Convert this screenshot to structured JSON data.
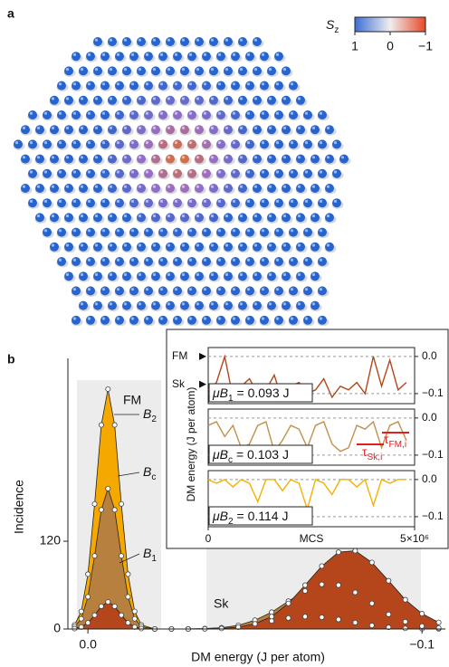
{
  "panel_a": {
    "label": "a",
    "colorbar": {
      "symbol": "S",
      "subscript": "z",
      "lim": [
        1,
        -1
      ],
      "ticks": [
        1,
        0,
        {
          "value": -1,
          "label": "−1"
        }
      ],
      "colors": [
        "#3d6fd6",
        "#eeeeee",
        "#e8492a"
      ]
    }
  },
  "panel_b": {
    "label": "b"
  },
  "chart_data": [
    {
      "type": "area",
      "xlabel": "DM energy (J per atom)",
      "ylabel": "Incidence",
      "xlim": [
        0.006,
        -0.107
      ],
      "xticks": [
        {
          "value": 0,
          "label": "0.0"
        },
        {
          "value": -0.1,
          "label": "−0.1"
        }
      ],
      "ylim": [
        0,
        370
      ],
      "yticks": [
        0,
        120
      ],
      "annotations": [
        "FM",
        "Sk"
      ],
      "x": [
        0.004,
        0.002,
        0,
        -0.002,
        -0.004,
        -0.006,
        -0.008,
        -0.01,
        -0.012,
        -0.014,
        -0.016,
        -0.02,
        -0.025,
        -0.03,
        -0.035,
        -0.04,
        -0.045,
        -0.05,
        -0.055,
        -0.06,
        -0.065,
        -0.07,
        -0.075,
        -0.08,
        -0.085,
        -0.09,
        -0.095,
        -0.1,
        -0.105
      ],
      "series": [
        {
          "label": {
            "main": "B",
            "sub": "1"
          },
          "color": "#b5451b",
          "values": [
            0.6,
            2.7,
            8.5,
            19,
            31,
            37,
            31,
            19,
            8.5,
            2.7,
            0.6,
            0,
            0,
            0,
            0.2,
            0.7,
            2.5,
            7.1,
            17,
            35,
            60,
            86,
            105,
            107,
            91,
            66,
            40,
            21,
            9
          ]
        },
        {
          "label": {
            "main": "B",
            "sub": "c"
          },
          "color": "#b8803e",
          "values": [
            3.3,
            14,
            44,
            100,
            163,
            192,
            163,
            100,
            44,
            14,
            3.3,
            0,
            0,
            0.1,
            0.5,
            1.7,
            5,
            12,
            23,
            38,
            52,
            61,
            60,
            50,
            35,
            20,
            10,
            4,
            1.4
          ]
        },
        {
          "label": {
            "main": "B",
            "sub": "2"
          },
          "color": "#f5a800",
          "values": [
            5.6,
            24,
            75,
            171,
            279,
            328,
            279,
            171,
            75,
            24,
            5.6,
            0,
            0,
            0.2,
            0.6,
            1.6,
            3.7,
            7,
            11,
            15,
            17,
            16,
            13,
            8.7,
            4.9,
            2.3,
            0.9,
            0.3,
            0.1
          ]
        }
      ]
    },
    {
      "type": "line",
      "xlim": [
        0,
        5000000
      ],
      "ylim": [
        0.024,
        -0.127
      ],
      "yticks": [
        {
          "value": 0,
          "label": "0.0"
        },
        {
          "value": -0.1,
          "label": "−0.1"
        }
      ],
      "grid": true,
      "levels": [
        {
          "text": "FM",
          "value": 0
        },
        {
          "text": "Sk",
          "value": -0.075
        }
      ],
      "box": {
        "prefix": "μB",
        "sub": "1",
        "text": " = 0.093 J"
      },
      "x": [
        0,
        200000,
        400000,
        600000,
        800000,
        1000000,
        1200000,
        1400000,
        1600000,
        1800000,
        2000000,
        2200000,
        2400000,
        2600000,
        2800000,
        3000000,
        3200000,
        3400000,
        3600000,
        3800000,
        4000000,
        4200000,
        4400000,
        4600000,
        4800000
      ],
      "series": [
        {
          "color": "#b5451b",
          "values": [
            -0.09,
            -0.07,
            0.0,
            -0.11,
            -0.08,
            -0.06,
            -0.1,
            -0.09,
            -0.05,
            -0.12,
            -0.08,
            -0.07,
            -0.1,
            -0.09,
            -0.06,
            -0.11,
            -0.08,
            -0.09,
            -0.07,
            -0.1,
            0.0,
            -0.08,
            -0.01,
            -0.09,
            -0.07
          ]
        }
      ]
    },
    {
      "type": "line",
      "ylabel": "DM energy (J per atom)",
      "xlim": [
        0,
        5000000
      ],
      "ylim": [
        0.024,
        -0.127
      ],
      "yticks": [
        {
          "value": 0,
          "label": "0.0"
        },
        {
          "value": -0.1,
          "label": "−0.1"
        }
      ],
      "grid": true,
      "box": {
        "prefix": "μB",
        "sub": "c",
        "text": " = 0.103 J"
      },
      "taus": [
        {
          "main": "τ",
          "sub": "FM,i"
        },
        {
          "main": "τ",
          "sub": "Sk,i"
        }
      ],
      "x": [
        0,
        200000,
        400000,
        600000,
        800000,
        1000000,
        1200000,
        1400000,
        1600000,
        1800000,
        2000000,
        2200000,
        2400000,
        2600000,
        2800000,
        3000000,
        3200000,
        3400000,
        3600000,
        3800000,
        4000000,
        4200000,
        4400000,
        4600000,
        4800000
      ],
      "series": [
        {
          "color": "#c0904e",
          "values": [
            -0.02,
            -0.01,
            -0.05,
            -0.02,
            -0.08,
            -0.07,
            -0.02,
            -0.01,
            -0.09,
            -0.06,
            -0.02,
            -0.03,
            -0.08,
            -0.02,
            -0.01,
            -0.07,
            -0.09,
            -0.08,
            -0.02,
            -0.03,
            -0.01,
            -0.08,
            -0.02,
            -0.01,
            -0.06
          ]
        }
      ]
    },
    {
      "type": "line",
      "xlabel": "MCS",
      "xlim": [
        0,
        5000000
      ],
      "xticks": [
        0,
        {
          "value": 5000000,
          "label": "5×10⁶"
        }
      ],
      "ylim": [
        0.024,
        -0.127
      ],
      "yticks": [
        {
          "value": 0,
          "label": "0.0"
        },
        {
          "value": -0.1,
          "label": "−0.1"
        }
      ],
      "grid": true,
      "box": {
        "prefix": "μB",
        "sub": "2",
        "text": " = 0.114 J"
      },
      "x": [
        0,
        200000,
        400000,
        600000,
        800000,
        1000000,
        1200000,
        1400000,
        1600000,
        1800000,
        2000000,
        2200000,
        2400000,
        2600000,
        2800000,
        3000000,
        3200000,
        3400000,
        3600000,
        3800000,
        4000000,
        4200000,
        4400000,
        4600000,
        4800000
      ],
      "series": [
        {
          "color": "#f5b000",
          "values": [
            0.0,
            -0.01,
            0.0,
            -0.02,
            0.0,
            -0.01,
            -0.06,
            0.0,
            0.0,
            -0.03,
            0.0,
            -0.01,
            -0.08,
            0.0,
            -0.01,
            -0.04,
            0.0,
            0.0,
            -0.02,
            0.0,
            -0.07,
            0.0,
            -0.01,
            0.0,
            0.0
          ]
        }
      ]
    }
  ]
}
